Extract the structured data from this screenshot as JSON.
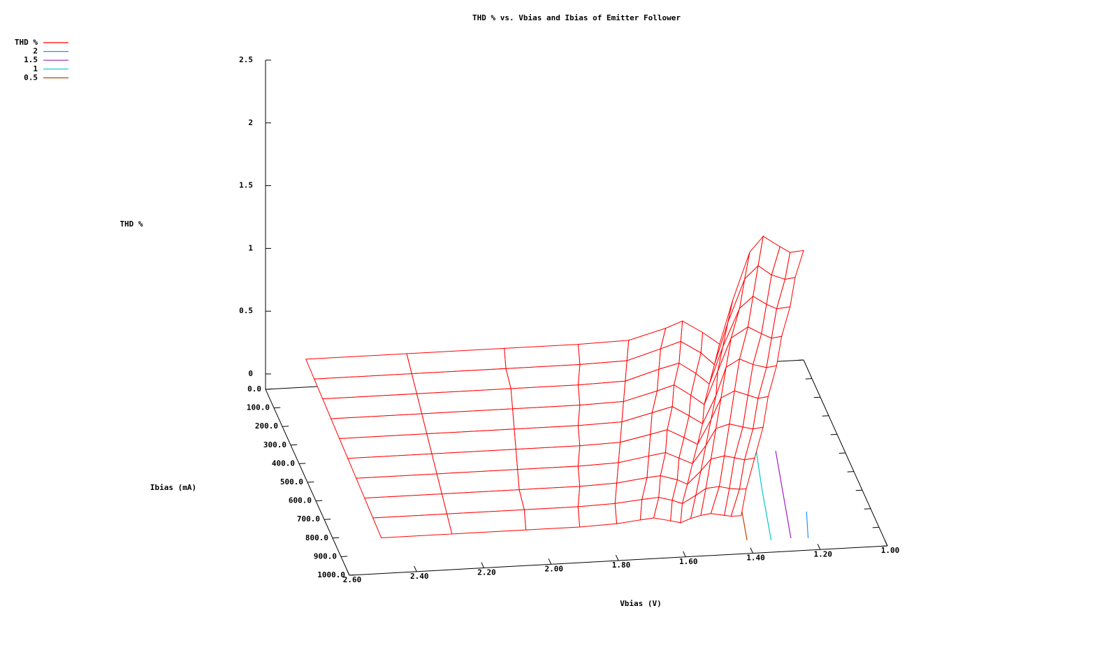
{
  "chart_data": {
    "type": "surface3d",
    "title": "THD % vs. Vbias and Ibias of Emitter Follower",
    "xlabel": "Vbias (V)",
    "ylabel": "Ibias (mA)",
    "zlabel": "THD %",
    "legend": "top-left",
    "xlim": [
      2.6,
      1.0
    ],
    "xticks": [
      {
        "value": 2.6,
        "label": "2.60"
      },
      {
        "value": 2.4,
        "label": "2.40"
      },
      {
        "value": 2.2,
        "label": "2.20"
      },
      {
        "value": 2.0,
        "label": "2.00"
      },
      {
        "value": 1.8,
        "label": "1.80"
      },
      {
        "value": 1.6,
        "label": "1.60"
      },
      {
        "value": 1.4,
        "label": "1.40"
      },
      {
        "value": 1.2,
        "label": "1.20"
      },
      {
        "value": 1.0,
        "label": "1.00"
      }
    ],
    "ylim": [
      0,
      1000
    ],
    "yticks": [
      {
        "value": 0,
        "label": "0.0"
      },
      {
        "value": 100,
        "label": "100.0"
      },
      {
        "value": 200,
        "label": "200.0"
      },
      {
        "value": 300,
        "label": "300.0"
      },
      {
        "value": 400,
        "label": "400.0"
      },
      {
        "value": 500,
        "label": "500.0"
      },
      {
        "value": 600,
        "label": "600.0"
      },
      {
        "value": 700,
        "label": "700.0"
      },
      {
        "value": 800,
        "label": "800.0"
      },
      {
        "value": 900,
        "label": "900.0"
      },
      {
        "value": 1000,
        "label": "1000.0"
      }
    ],
    "zlim": [
      0,
      2.5
    ],
    "zticks": [
      0,
      0.5,
      1,
      1.5,
      2,
      2.5
    ],
    "series": [
      {
        "name": "THD %",
        "color": "#ff0000",
        "surface": [
          {
            "y": 0,
            "x": [
              2.48,
              2.18,
              1.89,
              1.67,
              1.52,
              1.41,
              1.36,
              1.3,
              1.25,
              1.21,
              1.16,
              1.12,
              1.07,
              1.04,
              1.0
            ],
            "z": [
              0.1,
              0.1,
              0.1,
              0.1,
              0.11,
              0.19,
              0.24,
              0.14,
              0.04,
              0.39,
              0.76,
              0.88,
              0.79,
              0.74,
              0.75
            ]
          },
          {
            "y": 100,
            "x": [
              2.48,
              2.19,
              1.91,
              1.69,
              1.55,
              1.45,
              1.39,
              1.33,
              1.29,
              1.25,
              1.2,
              1.16,
              1.12,
              1.08,
              1.05
            ],
            "z": [
              0.09,
              0.09,
              0.09,
              0.09,
              0.1,
              0.18,
              0.23,
              0.13,
              0.03,
              0.36,
              0.7,
              0.8,
              0.72,
              0.68,
              0.69
            ]
          },
          {
            "y": 200,
            "x": [
              2.48,
              2.2,
              1.92,
              1.72,
              1.58,
              1.48,
              1.42,
              1.37,
              1.33,
              1.29,
              1.24,
              1.2,
              1.16,
              1.13,
              1.09
            ],
            "z": [
              0.08,
              0.08,
              0.08,
              0.08,
              0.09,
              0.17,
              0.21,
              0.12,
              0.03,
              0.32,
              0.62,
              0.71,
              0.64,
              0.6,
              0.61
            ]
          },
          {
            "y": 300,
            "x": [
              2.48,
              2.21,
              1.94,
              1.74,
              1.61,
              1.51,
              1.46,
              1.41,
              1.37,
              1.33,
              1.29,
              1.24,
              1.2,
              1.17,
              1.14
            ],
            "z": [
              0.07,
              0.07,
              0.07,
              0.07,
              0.08,
              0.15,
              0.19,
              0.1,
              0.02,
              0.28,
              0.54,
              0.62,
              0.56,
              0.52,
              0.53
            ]
          },
          {
            "y": 400,
            "x": [
              2.48,
              2.22,
              1.96,
              1.77,
              1.64,
              1.55,
              1.49,
              1.44,
              1.4,
              1.36,
              1.33,
              1.29,
              1.25,
              1.21,
              1.18
            ],
            "z": [
              0.06,
              0.06,
              0.06,
              0.06,
              0.07,
              0.13,
              0.17,
              0.09,
              0.02,
              0.24,
              0.46,
              0.52,
              0.47,
              0.44,
              0.45
            ]
          },
          {
            "y": 500,
            "x": [
              2.48,
              2.23,
              1.98,
              1.79,
              1.67,
              1.58,
              1.53,
              1.48,
              1.44,
              1.4,
              1.37,
              1.33,
              1.29,
              1.26,
              1.23
            ],
            "z": [
              0.05,
              0.05,
              0.05,
              0.05,
              0.06,
              0.11,
              0.14,
              0.07,
              0.01,
              0.2,
              0.37,
              0.42,
              0.38,
              0.35,
              0.36
            ]
          },
          {
            "y": 600,
            "x": [
              2.48,
              2.24,
              2.0,
              1.82,
              1.7,
              1.61,
              1.56,
              1.52,
              1.48,
              1.44,
              1.41,
              1.37,
              1.33,
              1.3,
              1.27
            ],
            "z": [
              0.04,
              0.04,
              0.04,
              0.04,
              0.05,
              0.09,
              0.11,
              0.06,
              0.01,
              0.15,
              0.28,
              0.31,
              0.28,
              0.26,
              0.27
            ]
          },
          {
            "y": 700,
            "x": [
              2.48,
              2.25,
              2.02,
              1.84,
              1.73,
              1.64,
              1.6,
              1.55,
              1.52,
              1.48,
              1.45,
              1.41,
              1.38,
              1.35,
              1.32
            ],
            "z": [
              0.03,
              0.03,
              0.03,
              0.03,
              0.04,
              0.07,
              0.08,
              0.04,
              0.0,
              0.1,
              0.19,
              0.21,
              0.19,
              0.17,
              0.18
            ]
          },
          {
            "y": 800,
            "x": [
              2.48,
              2.26,
              2.03,
              1.87,
              1.76,
              1.68,
              1.63,
              1.59,
              1.56,
              1.52,
              1.49,
              1.45,
              1.42,
              1.39,
              1.37
            ],
            "z": [
              0.02,
              0.02,
              0.02,
              0.02,
              0.03,
              0.05,
              0.06,
              0.03,
              0.0,
              0.06,
              0.11,
              0.12,
              0.1,
              0.09,
              0.09
            ]
          },
          {
            "y": 900,
            "x": [
              2.48,
              2.27,
              2.05,
              1.89,
              1.78,
              1.71,
              1.67,
              1.62,
              1.59,
              1.56,
              1.53,
              1.5,
              1.46,
              1.44,
              1.41
            ],
            "z": [
              0.01,
              0.01,
              0.01,
              0.01,
              0.02,
              0.04,
              0.05,
              0.02,
              0.0,
              0.03,
              0.05,
              0.06,
              0.04,
              0.03,
              0.03
            ]
          }
        ]
      },
      {
        "name": "2",
        "color": "#1e90ff",
        "x": [
          1.19,
          1.22
        ],
        "y": [
          797,
          937
        ]
      },
      {
        "name": "1.5",
        "color": "#a020c0",
        "x": [
          1.2,
          1.27
        ],
        "y": [
          469,
          932
        ]
      },
      {
        "name": "1",
        "color": "#00c8c8",
        "x": [
          1.25,
          1.29,
          1.33
        ],
        "y": [
          426,
          667,
          937
        ]
      },
      {
        "name": "0.5",
        "color": "#c04000",
        "x": [
          1.365,
          1.4
        ],
        "y": [
          697,
          930
        ]
      }
    ]
  }
}
